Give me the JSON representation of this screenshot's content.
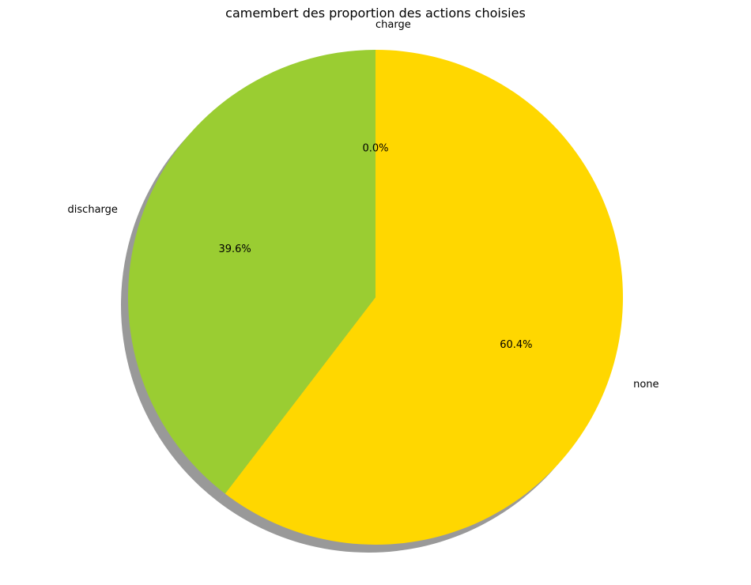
{
  "chart_data": {
    "type": "pie",
    "title": "camembert des proportion des actions choisies",
    "slices": [
      {
        "label": "charge",
        "value": 0.0,
        "pct_label": "0.0%",
        "color": "#ff8c00"
      },
      {
        "label": "none",
        "value": 60.4,
        "pct_label": "60.4%",
        "color": "#ffd700"
      },
      {
        "label": "discharge",
        "value": 39.6,
        "pct_label": "39.6%",
        "color": "#9acd32"
      }
    ],
    "start_angle_deg": 90,
    "direction": "clockwise",
    "shadow": true,
    "legend": "none"
  }
}
